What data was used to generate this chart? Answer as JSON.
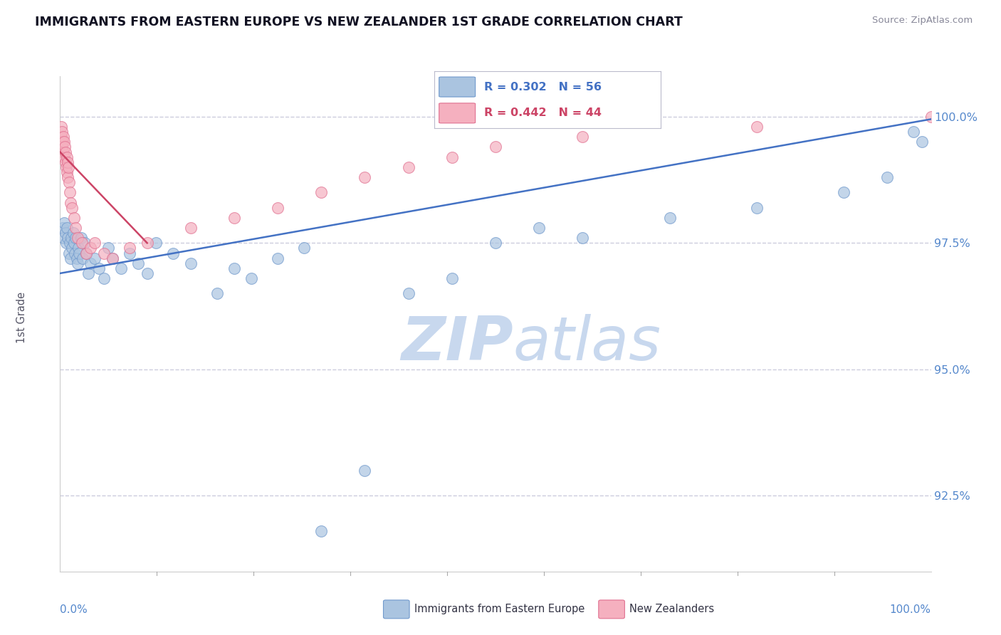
{
  "title": "IMMIGRANTS FROM EASTERN EUROPE VS NEW ZEALANDER 1ST GRADE CORRELATION CHART",
  "source": "Source: ZipAtlas.com",
  "ylabel": "1st Grade",
  "legend_label_blue": "Immigrants from Eastern Europe",
  "legend_label_pink": "New Zealanders",
  "xlim": [
    0.0,
    100.0
  ],
  "ylim": [
    91.0,
    100.8
  ],
  "yticks": [
    92.5,
    95.0,
    97.5,
    100.0
  ],
  "ytick_labels": [
    "92.5%",
    "95.0%",
    "97.5%",
    "100.0%"
  ],
  "background_color": "#ffffff",
  "scatter_blue_color": "#aac4e0",
  "scatter_blue_edge": "#7099cc",
  "scatter_pink_color": "#f5b0bf",
  "scatter_pink_edge": "#e07090",
  "line_blue_color": "#4472c4",
  "line_pink_color": "#cc4466",
  "watermark_zip": "ZIP",
  "watermark_atlas": "atlas",
  "watermark_color": "#c8d8ee",
  "grid_color": "#ccccdd",
  "title_color": "#111122",
  "tick_color": "#5588cc",
  "marker_size": 130,
  "blue_x": [
    0.3,
    0.4,
    0.5,
    0.6,
    0.7,
    0.8,
    0.9,
    1.0,
    1.1,
    1.2,
    1.3,
    1.4,
    1.5,
    1.6,
    1.7,
    1.8,
    1.9,
    2.0,
    2.1,
    2.2,
    2.4,
    2.6,
    2.8,
    3.0,
    3.2,
    3.5,
    4.0,
    4.5,
    5.0,
    5.5,
    6.0,
    7.0,
    8.0,
    9.0,
    10.0,
    11.0,
    13.0,
    15.0,
    18.0,
    20.0,
    22.0,
    25.0,
    28.0,
    30.0,
    35.0,
    40.0,
    45.0,
    50.0,
    55.0,
    60.0,
    70.0,
    80.0,
    90.0,
    95.0,
    98.0,
    99.0
  ],
  "blue_y": [
    97.8,
    97.6,
    97.9,
    97.7,
    97.5,
    97.8,
    97.6,
    97.3,
    97.5,
    97.2,
    97.6,
    97.4,
    97.7,
    97.5,
    97.3,
    97.6,
    97.2,
    97.1,
    97.4,
    97.3,
    97.6,
    97.2,
    97.5,
    97.3,
    96.9,
    97.1,
    97.2,
    97.0,
    96.8,
    97.4,
    97.2,
    97.0,
    97.3,
    97.1,
    96.9,
    97.5,
    97.3,
    97.1,
    96.5,
    97.0,
    96.8,
    97.2,
    97.4,
    91.8,
    93.0,
    96.5,
    96.8,
    97.5,
    97.8,
    97.6,
    98.0,
    98.2,
    98.5,
    98.8,
    99.7,
    99.5
  ],
  "pink_x": [
    0.1,
    0.15,
    0.2,
    0.25,
    0.3,
    0.35,
    0.4,
    0.45,
    0.5,
    0.55,
    0.6,
    0.65,
    0.7,
    0.75,
    0.8,
    0.85,
    0.9,
    0.95,
    1.0,
    1.1,
    1.2,
    1.4,
    1.6,
    1.8,
    2.0,
    2.5,
    3.0,
    3.5,
    4.0,
    5.0,
    6.0,
    8.0,
    10.0,
    15.0,
    20.0,
    25.0,
    30.0,
    35.0,
    40.0,
    45.0,
    50.0,
    60.0,
    80.0,
    100.0
  ],
  "pink_y": [
    99.6,
    99.8,
    99.4,
    99.7,
    99.5,
    99.6,
    99.3,
    99.5,
    99.2,
    99.4,
    99.1,
    99.3,
    99.0,
    99.2,
    98.9,
    99.1,
    98.8,
    99.0,
    98.7,
    98.5,
    98.3,
    98.2,
    98.0,
    97.8,
    97.6,
    97.5,
    97.3,
    97.4,
    97.5,
    97.3,
    97.2,
    97.4,
    97.5,
    97.8,
    98.0,
    98.2,
    98.5,
    98.8,
    99.0,
    99.2,
    99.4,
    99.6,
    99.8,
    100.0
  ],
  "blue_reg_x0": 0.0,
  "blue_reg_y0": 96.9,
  "blue_reg_x1": 100.0,
  "blue_reg_y1": 99.95,
  "pink_reg_x0": 0.0,
  "pink_reg_y0": 99.3,
  "pink_reg_x1": 10.0,
  "pink_reg_y1": 97.5
}
